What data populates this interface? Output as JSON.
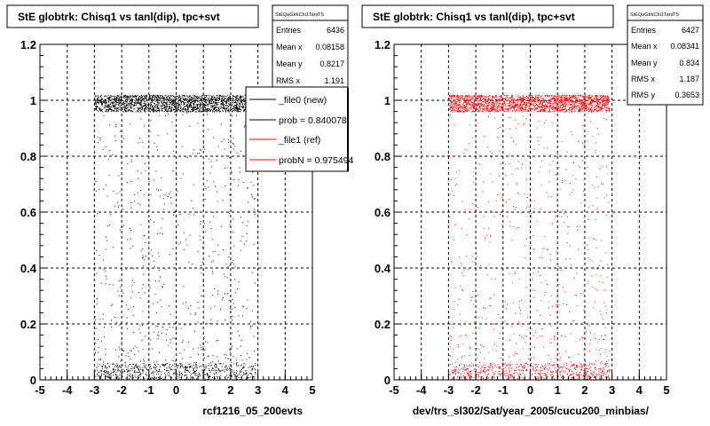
{
  "chart_data": [
    {
      "type": "scatter",
      "title": "StE globtrk: Chisq1 vs tanl(dip), tpc+svt",
      "xlabel": "rcf1216_05_200evts",
      "ylabel": "",
      "xlim": [
        -5,
        5
      ],
      "ylim": [
        0,
        1.2
      ],
      "xticks": [
        -5,
        -4,
        -3,
        -2,
        -1,
        0,
        1,
        2,
        3,
        4,
        5
      ],
      "yticks": [
        0,
        0.2,
        0.4,
        0.6,
        0.8,
        1,
        1.2
      ],
      "grid": true,
      "marker_color": "#000000",
      "stats": {
        "name": "StEQaGtrkChi1TanlTS",
        "entries_label": "Entries",
        "entries": "6436",
        "meanx_label": "Mean x",
        "meanx": "0.08158",
        "meany_label": "Mean y",
        "meany": "0.8217",
        "rmsx_label": "RMS x",
        "rmsx": "1.191"
      },
      "legend": [
        {
          "label": "_file0 (new)",
          "color": "#000000"
        },
        {
          "label": "prob = 0.840078",
          "color": "#000000"
        },
        {
          "label": "_file1 (ref)",
          "color": "#ff0000"
        },
        {
          "label": "probN = 0.975494",
          "color": "#ff0000"
        }
      ],
      "distribution": {
        "x_range": [
          -3.0,
          2.9
        ],
        "bands": [
          {
            "y_center": 0.99,
            "y_halfwidth": 0.03,
            "fraction": 0.62
          },
          {
            "y_center": 0.03,
            "y_halfwidth": 0.03,
            "fraction": 0.2
          }
        ],
        "background_fraction": 0.18
      }
    },
    {
      "type": "scatter",
      "title": "StE globtrk: Chisq1 vs tanl(dip), tpc+svt",
      "xlabel": "dev/trs_sl302/Sat/year_2005/cucu200_minbias/",
      "ylabel": "",
      "xlim": [
        -5,
        5
      ],
      "ylim": [
        0,
        1.2
      ],
      "xticks": [
        -5,
        -4,
        -3,
        -2,
        -1,
        0,
        1,
        2,
        3,
        4,
        5
      ],
      "yticks": [
        0,
        0.2,
        0.4,
        0.6,
        0.8,
        1,
        1.2
      ],
      "grid": true,
      "marker_color": "#ff0000",
      "stats": {
        "name": "StEQaGtrkChi1TanlTS",
        "entries_label": "Entries",
        "entries": "6427",
        "meanx_label": "Mean x",
        "meanx": "0.08341",
        "meany_label": "Mean y",
        "meany": "0.834",
        "rmsx_label": "RMS x",
        "rmsx": "1.187",
        "rmsy_label": "RMS y",
        "rmsy": "0.3653"
      },
      "distribution": {
        "x_range": [
          -3.0,
          2.9
        ],
        "bands": [
          {
            "y_center": 0.99,
            "y_halfwidth": 0.03,
            "fraction": 0.62
          },
          {
            "y_center": 0.03,
            "y_halfwidth": 0.03,
            "fraction": 0.2
          }
        ],
        "background_fraction": 0.18
      }
    }
  ]
}
